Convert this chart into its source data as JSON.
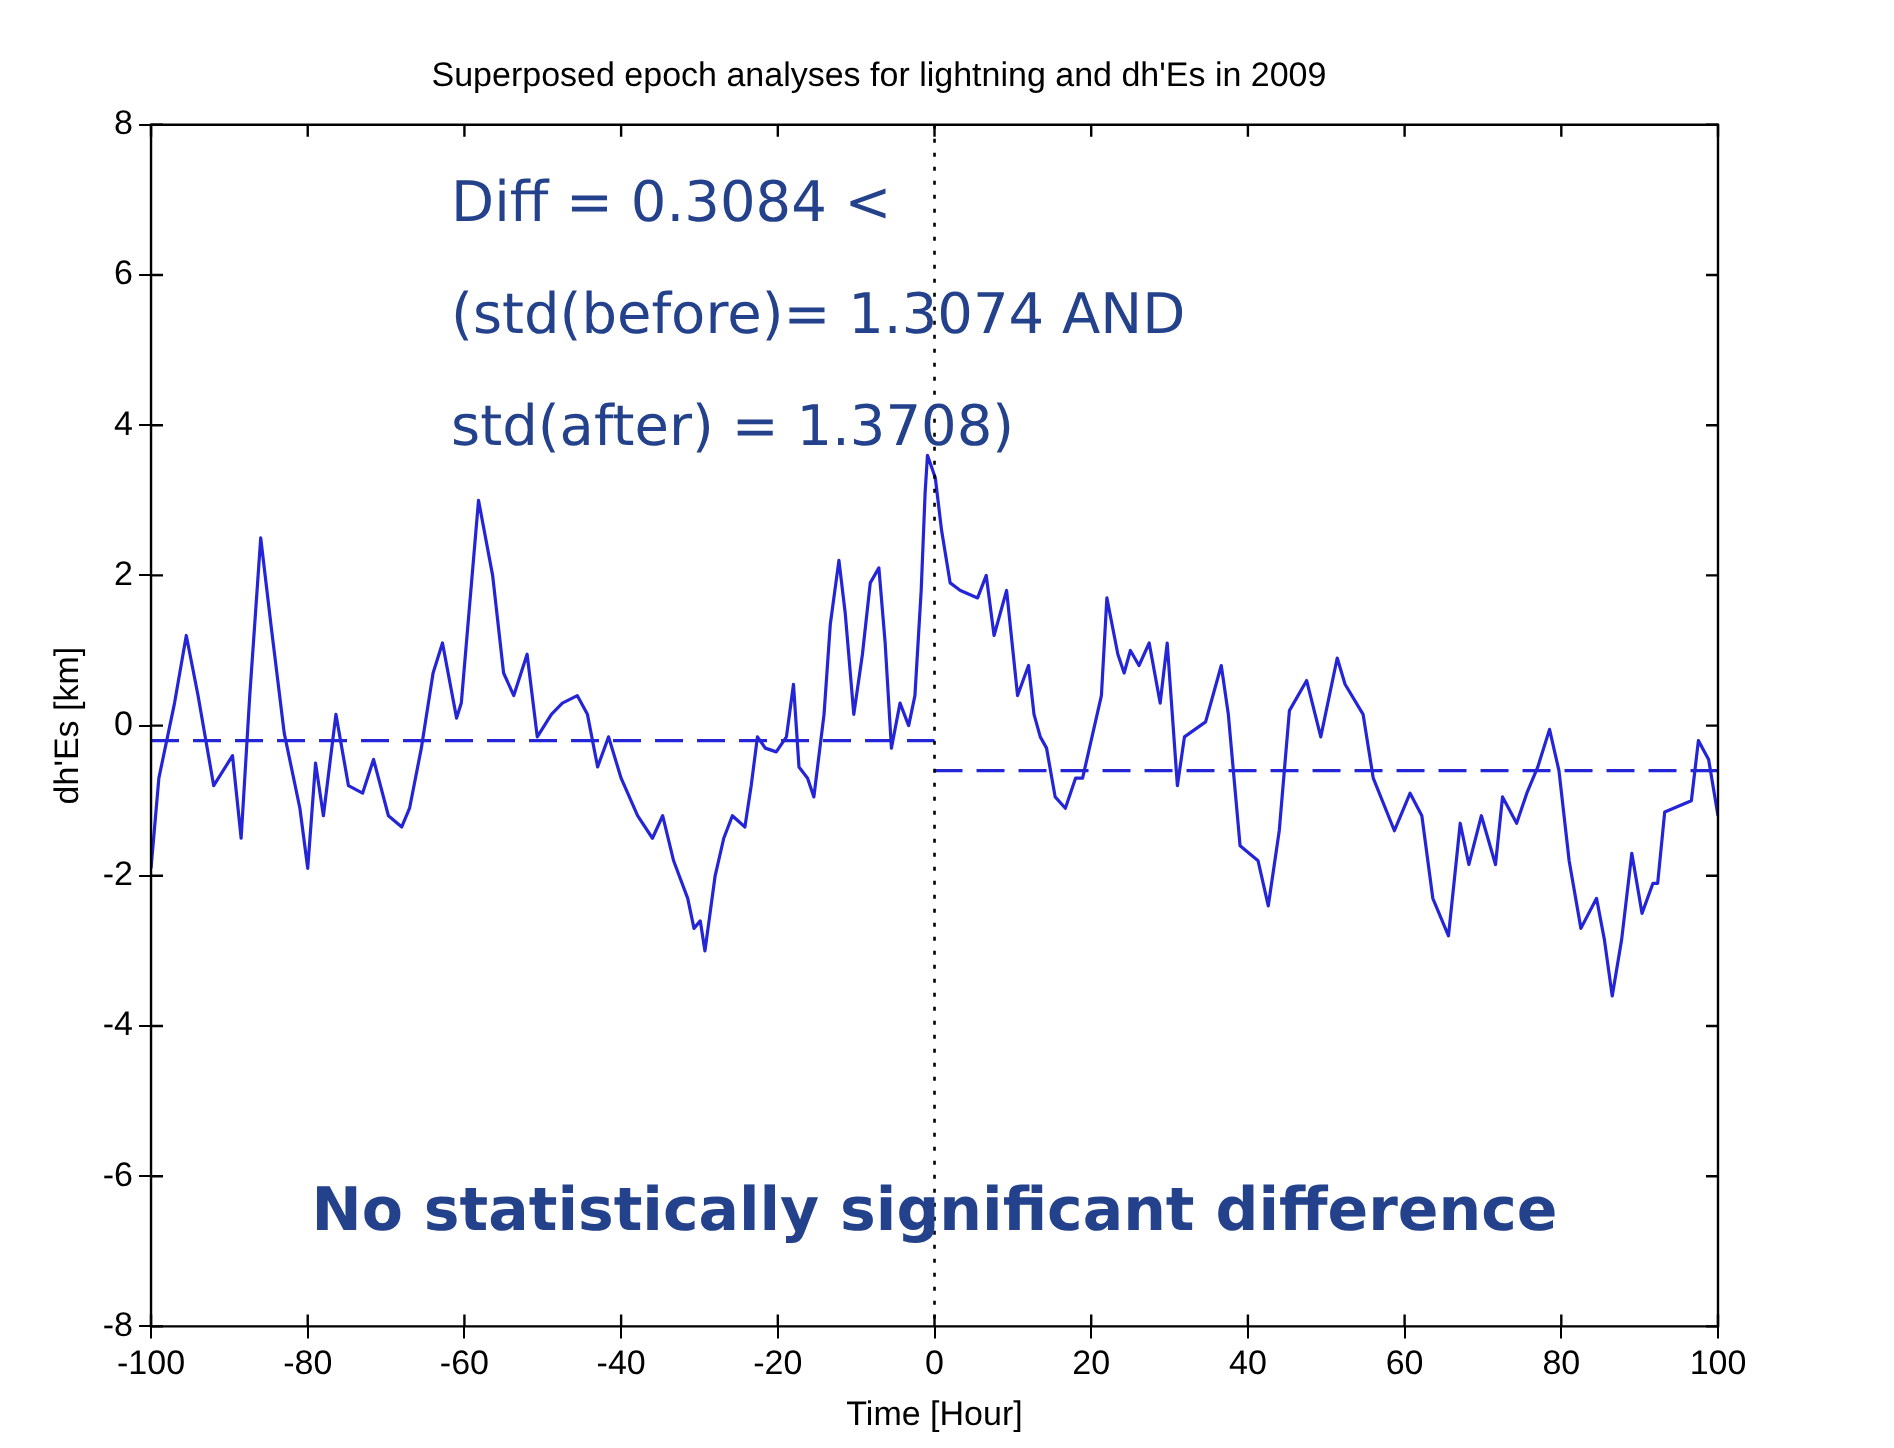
{
  "chart_data": {
    "type": "line",
    "title": "Superposed epoch analyses for lightning and dh'Es in 2009",
    "xlabel": "Time [Hour]",
    "ylabel": "dh'Es [km]",
    "xlim": [
      -100,
      100
    ],
    "xticks": [
      -100,
      -80,
      -60,
      -40,
      -20,
      0,
      20,
      40,
      60,
      80,
      100
    ],
    "ylim": [
      -8,
      8
    ],
    "yticks": [
      -8,
      -6,
      -4,
      -2,
      0,
      2,
      4,
      6,
      8
    ],
    "grid": false,
    "legend": false,
    "marker": "none",
    "series": [
      {
        "color": "#2525d8",
        "line_style": "solid",
        "x": [
          -100,
          -99,
          -97,
          -95.5,
          -94,
          -92,
          -89.6,
          -88.5,
          -87.4,
          -86,
          -84.7,
          -83,
          -81,
          -80,
          -79,
          -78,
          -76.4,
          -74.8,
          -73,
          -71.6,
          -69.7,
          -68,
          -67,
          -65.5,
          -64,
          -62.8,
          -61,
          -60.4,
          -58.2,
          -56.4,
          -55,
          -53.7,
          -52,
          -50.7,
          -48.9,
          -47.5,
          -45.6,
          -44.3,
          -43,
          -41.6,
          -40,
          -37.9,
          -36,
          -34.7,
          -33.3,
          -31.5,
          -30.7,
          -29.9,
          -29.3,
          -28,
          -26.9,
          -25.8,
          -24.2,
          -23.4,
          -22.6,
          -21.6,
          -20.2,
          -18.9,
          -18,
          -17.3,
          -16.2,
          -15.4,
          -14.1,
          -13.3,
          -12.2,
          -11.4,
          -10.3,
          -9.2,
          -8.2,
          -7.1,
          -6.3,
          -5.5,
          -4.4,
          -3.3,
          -2.5,
          -1.7,
          -1.2,
          -0.9,
          0.1,
          0.9,
          2,
          3.3,
          5.5,
          6.6,
          7.6,
          9.2,
          10.6,
          12,
          12.7,
          13.5,
          14.3,
          15.4,
          16.7,
          18,
          18.9,
          21.3,
          22,
          23.4,
          24.2,
          25,
          26.1,
          27.4,
          28.8,
          29.7,
          31,
          31.9,
          34.6,
          36.6,
          37.5,
          39,
          41.3,
          42.6,
          44,
          45.3,
          47.5,
          49.3,
          51.4,
          52.4,
          54.7,
          56,
          58.7,
          60.7,
          62.2,
          63.6,
          65.6,
          67.1,
          68.2,
          69.8,
          71.6,
          72.5,
          74.3,
          75.6,
          77,
          78.5,
          79.7,
          81,
          82.5,
          84.5,
          85.5,
          86.5,
          87.7,
          89,
          90.3,
          91.7,
          92.3,
          93.2,
          96.6,
          97.5,
          98.8,
          100
        ],
        "values": [
          -1.9,
          -0.7,
          0.3,
          1.2,
          0.4,
          -0.8,
          -0.4,
          -1.5,
          0.4,
          2.5,
          1.35,
          -0.1,
          -1.1,
          -1.9,
          -0.5,
          -1.2,
          0.15,
          -0.8,
          -0.9,
          -0.45,
          -1.2,
          -1.35,
          -1.1,
          -0.3,
          0.7,
          1.1,
          0.1,
          0.3,
          3.0,
          2.0,
          0.7,
          0.4,
          0.95,
          -0.15,
          0.15,
          0.3,
          0.4,
          0.15,
          -0.55,
          -0.15,
          -0.7,
          -1.2,
          -1.5,
          -1.2,
          -1.8,
          -2.3,
          -2.7,
          -2.6,
          -3.0,
          -2.0,
          -1.5,
          -1.2,
          -1.35,
          -0.8,
          -0.15,
          -0.3,
          -0.35,
          -0.15,
          0.55,
          -0.55,
          -0.7,
          -0.95,
          0.15,
          1.35,
          2.2,
          1.5,
          0.15,
          0.95,
          1.9,
          2.1,
          1.1,
          -0.3,
          0.3,
          0,
          0.4,
          1.8,
          3.1,
          3.6,
          3.3,
          2.6,
          1.9,
          1.8,
          1.7,
          2.0,
          1.2,
          1.8,
          0.4,
          0.8,
          0.15,
          -0.15,
          -0.3,
          -0.95,
          -1.1,
          -0.7,
          -0.7,
          0.4,
          1.7,
          0.95,
          0.7,
          1.0,
          0.8,
          1.1,
          0.3,
          1.1,
          -0.8,
          -0.15,
          0.05,
          0.8,
          0.15,
          -1.6,
          -1.8,
          -2.4,
          -1.4,
          0.2,
          0.6,
          -0.15,
          0.9,
          0.55,
          0.15,
          -0.7,
          -1.4,
          -0.9,
          -1.2,
          -2.3,
          -2.8,
          -1.3,
          -1.85,
          -1.2,
          -1.85,
          -0.95,
          -1.3,
          -0.9,
          -0.55,
          -0.05,
          -0.6,
          -1.8,
          -2.7,
          -2.3,
          -2.85,
          -3.6,
          -2.85,
          -1.7,
          -2.5,
          -2.1,
          -2.1,
          -1.15,
          -1.0,
          -0.2,
          -0.45,
          -1.2
        ]
      },
      {
        "color": "#2525d8",
        "line_style": "dashed",
        "x": [
          -100,
          0
        ],
        "values": [
          -0.2,
          -0.2
        ]
      },
      {
        "color": "#2525d8",
        "line_style": "dashed",
        "x": [
          0,
          100
        ],
        "values": [
          -0.6,
          -0.6
        ]
      }
    ],
    "ref_lines": [
      {
        "axis": "x",
        "value": 0,
        "color": "#000000",
        "line_style": "dotted"
      }
    ],
    "annotations": [
      "Diff = 0.3084 <",
      "(std(before)= 1.3074 AND",
      "std(after) = 1.3708)",
      "No statistically significant difference"
    ]
  }
}
